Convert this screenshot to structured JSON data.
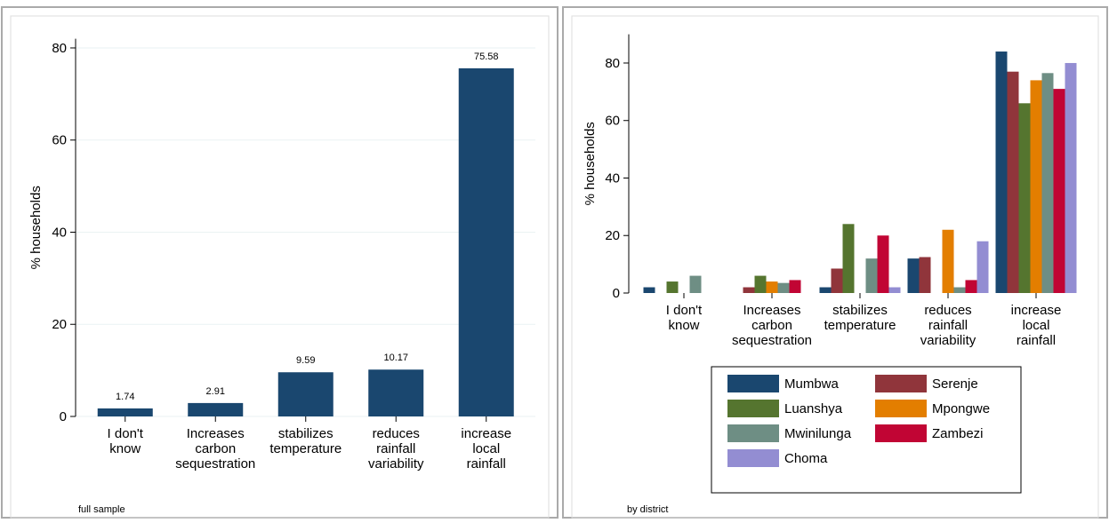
{
  "chart_data": [
    {
      "type": "bar",
      "y_label": "% households",
      "note": "full sample",
      "categories": [
        [
          "I don't",
          "know"
        ],
        [
          "Increases",
          "carbon",
          "sequestration"
        ],
        [
          "stabilizes",
          "temperature"
        ],
        [
          "reduces",
          "rainfall",
          "variability"
        ],
        [
          "increase",
          "local",
          "rainfall"
        ]
      ],
      "values": [
        1.74,
        2.91,
        9.59,
        10.17,
        75.58
      ],
      "color": "#1a476f",
      "ylim": [
        0,
        82
      ],
      "yticks": [
        0,
        20,
        40,
        60,
        80
      ],
      "grid": true
    },
    {
      "type": "grouped_bar",
      "y_label": "% households",
      "note": "by district",
      "categories": [
        [
          "I don't",
          "know"
        ],
        [
          "Increases",
          "carbon",
          "sequestration"
        ],
        [
          "stabilizes",
          "temperature"
        ],
        [
          "reduces",
          "rainfall",
          "variability"
        ],
        [
          "increase",
          "local",
          "rainfall"
        ]
      ],
      "series": [
        {
          "name": "Mumbwa",
          "color": "#1a476f",
          "values": [
            2,
            0,
            2,
            12,
            84
          ]
        },
        {
          "name": "Serenje",
          "color": "#90353b",
          "values": [
            0,
            2,
            8.5,
            12.5,
            77
          ]
        },
        {
          "name": "Luanshya",
          "color": "#55752f",
          "values": [
            4,
            6,
            24,
            0,
            66
          ]
        },
        {
          "name": "Mpongwe",
          "color": "#e37e00",
          "values": [
            0,
            4,
            0,
            22,
            74
          ]
        },
        {
          "name": "Mwinilunga",
          "color": "#6e8e84",
          "values": [
            6,
            3.5,
            12,
            2,
            76.5
          ]
        },
        {
          "name": "Zambezi",
          "color": "#c10534",
          "values": [
            0,
            4.5,
            20,
            4.5,
            71
          ]
        },
        {
          "name": "Choma",
          "color": "#938dd2",
          "values": [
            0,
            0,
            2,
            18,
            80
          ]
        }
      ],
      "ylim": [
        0,
        90
      ],
      "yticks": [
        0,
        20,
        40,
        60,
        80
      ],
      "grid": false
    }
  ]
}
